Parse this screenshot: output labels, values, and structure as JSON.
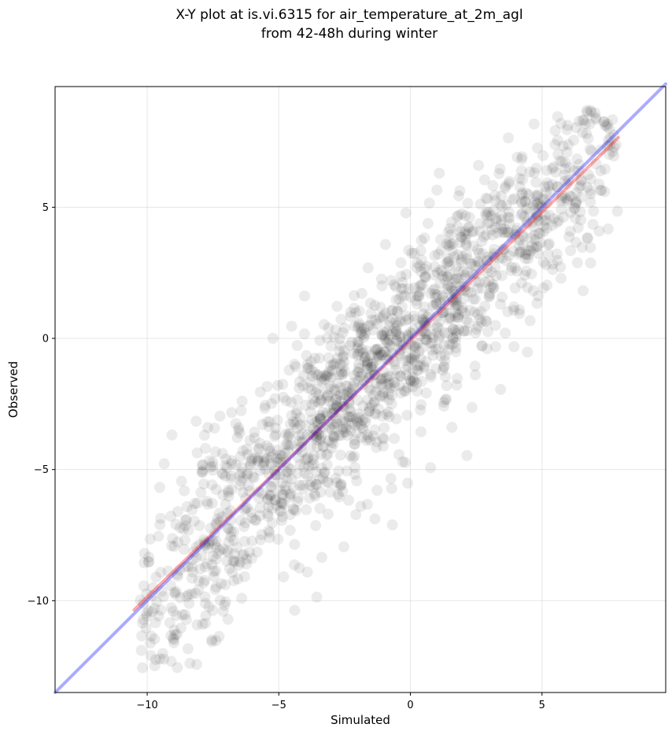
{
  "chart_data": {
    "type": "scatter",
    "title_line1": "X-Y plot at is.vi.6315 for air_temperature_at_2m_agl",
    "title_line2": "from 42-48h during winter",
    "xlabel": "Simulated",
    "ylabel": "Observed",
    "xlim": [
      -13.5,
      9.7
    ],
    "ylim": [
      -13.5,
      9.6
    ],
    "xticks": [
      -10,
      -5,
      0,
      5
    ],
    "yticks": [
      -10,
      -5,
      0,
      5
    ],
    "xtick_labels": [
      "−10",
      "−5",
      "0",
      "5"
    ],
    "ytick_labels": [
      "−10",
      "−5",
      "0",
      "5"
    ],
    "grid": true,
    "point_color": "#000000",
    "point_count": 1600,
    "series": [
      {
        "kind": "regression-fit",
        "color": "#ff0000",
        "x": [
          -10.5,
          7.9
        ],
        "y": [
          -10.35,
          7.65
        ]
      },
      {
        "kind": "one-to-one",
        "color": "#0000ff",
        "x": [
          -13.5,
          9.7
        ],
        "y": [
          -13.5,
          9.7
        ]
      }
    ]
  }
}
